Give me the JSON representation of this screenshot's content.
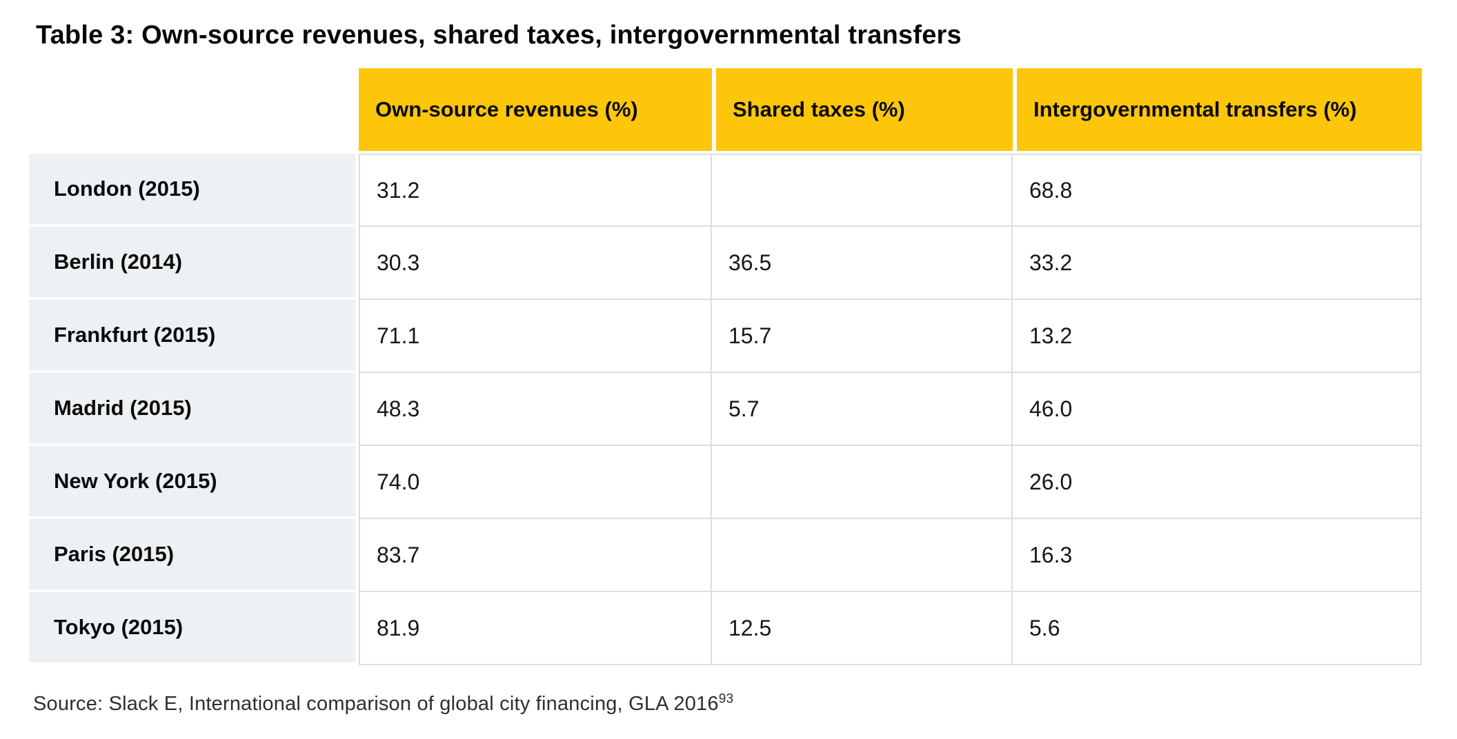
{
  "title": "Table 3: Own-source revenues, shared taxes, intergovernmental transfers",
  "table": {
    "columns": [
      "Own-source revenues (%)",
      "Shared taxes (%)",
      "Intergovernmental transfers (%)"
    ],
    "rows": [
      {
        "label": "London (2015)",
        "values": [
          "31.2",
          "",
          "68.8"
        ]
      },
      {
        "label": "Berlin (2014)",
        "values": [
          "30.3",
          "36.5",
          "33.2"
        ]
      },
      {
        "label": "Frankfurt (2015)",
        "values": [
          "71.1",
          "15.7",
          "13.2"
        ]
      },
      {
        "label": "Madrid (2015)",
        "values": [
          "48.3",
          "5.7",
          "46.0"
        ]
      },
      {
        "label": "New York (2015)",
        "values": [
          "74.0",
          "",
          "26.0"
        ]
      },
      {
        "label": "Paris (2015)",
        "values": [
          "83.7",
          "",
          "16.3"
        ]
      },
      {
        "label": "Tokyo (2015)",
        "values": [
          "81.9",
          "12.5",
          "5.6"
        ]
      }
    ]
  },
  "source": {
    "text": "Source: Slack E, International comparison of global city financing, GLA 2016",
    "footnote_superscript": "93"
  },
  "colors": {
    "header_bg": "#FDC60B",
    "label_bg": "#EDF1F3",
    "border": "#DDDDDD"
  }
}
